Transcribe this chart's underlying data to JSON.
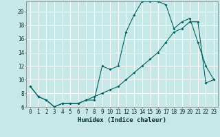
{
  "title": "",
  "xlabel": "Humidex (Indice chaleur)",
  "ylabel": "",
  "bg_color": "#c8e8e8",
  "line_color": "#006060",
  "grid_color": "#ffffff",
  "x_line1": [
    0,
    1,
    2,
    3,
    4,
    5,
    6,
    7,
    8,
    9,
    10,
    11,
    12,
    13,
    14,
    15,
    16,
    17,
    18,
    19,
    20,
    21,
    22,
    23
  ],
  "y_line1": [
    9,
    7.5,
    7,
    6,
    6.5,
    6.5,
    6.5,
    7,
    7,
    12,
    11.5,
    12,
    17,
    19.5,
    21.5,
    21.5,
    21.5,
    21,
    17.5,
    18.5,
    19,
    15.5,
    12,
    10
  ],
  "x_line2": [
    0,
    1,
    2,
    3,
    4,
    5,
    6,
    7,
    8,
    9,
    10,
    11,
    12,
    13,
    14,
    15,
    16,
    17,
    18,
    19,
    20,
    21,
    22,
    23
  ],
  "y_line2": [
    9,
    7.5,
    7,
    6,
    6.5,
    6.5,
    6.5,
    7,
    7.5,
    8,
    8.5,
    9,
    10,
    11,
    12,
    13,
    14,
    15.5,
    17,
    17.5,
    18.5,
    18.5,
    9.5,
    10
  ],
  "ylim": [
    6,
    21.5
  ],
  "xlim": [
    -0.5,
    23.5
  ],
  "yticks": [
    6,
    8,
    10,
    12,
    14,
    16,
    18,
    20
  ],
  "xticks": [
    0,
    1,
    2,
    3,
    4,
    5,
    6,
    7,
    8,
    9,
    10,
    11,
    12,
    13,
    14,
    15,
    16,
    17,
    18,
    19,
    20,
    21,
    22,
    23
  ],
  "xlabel_fontsize": 6.5,
  "tick_fontsize": 5.5,
  "figsize": [
    3.2,
    2.0
  ],
  "dpi": 100
}
